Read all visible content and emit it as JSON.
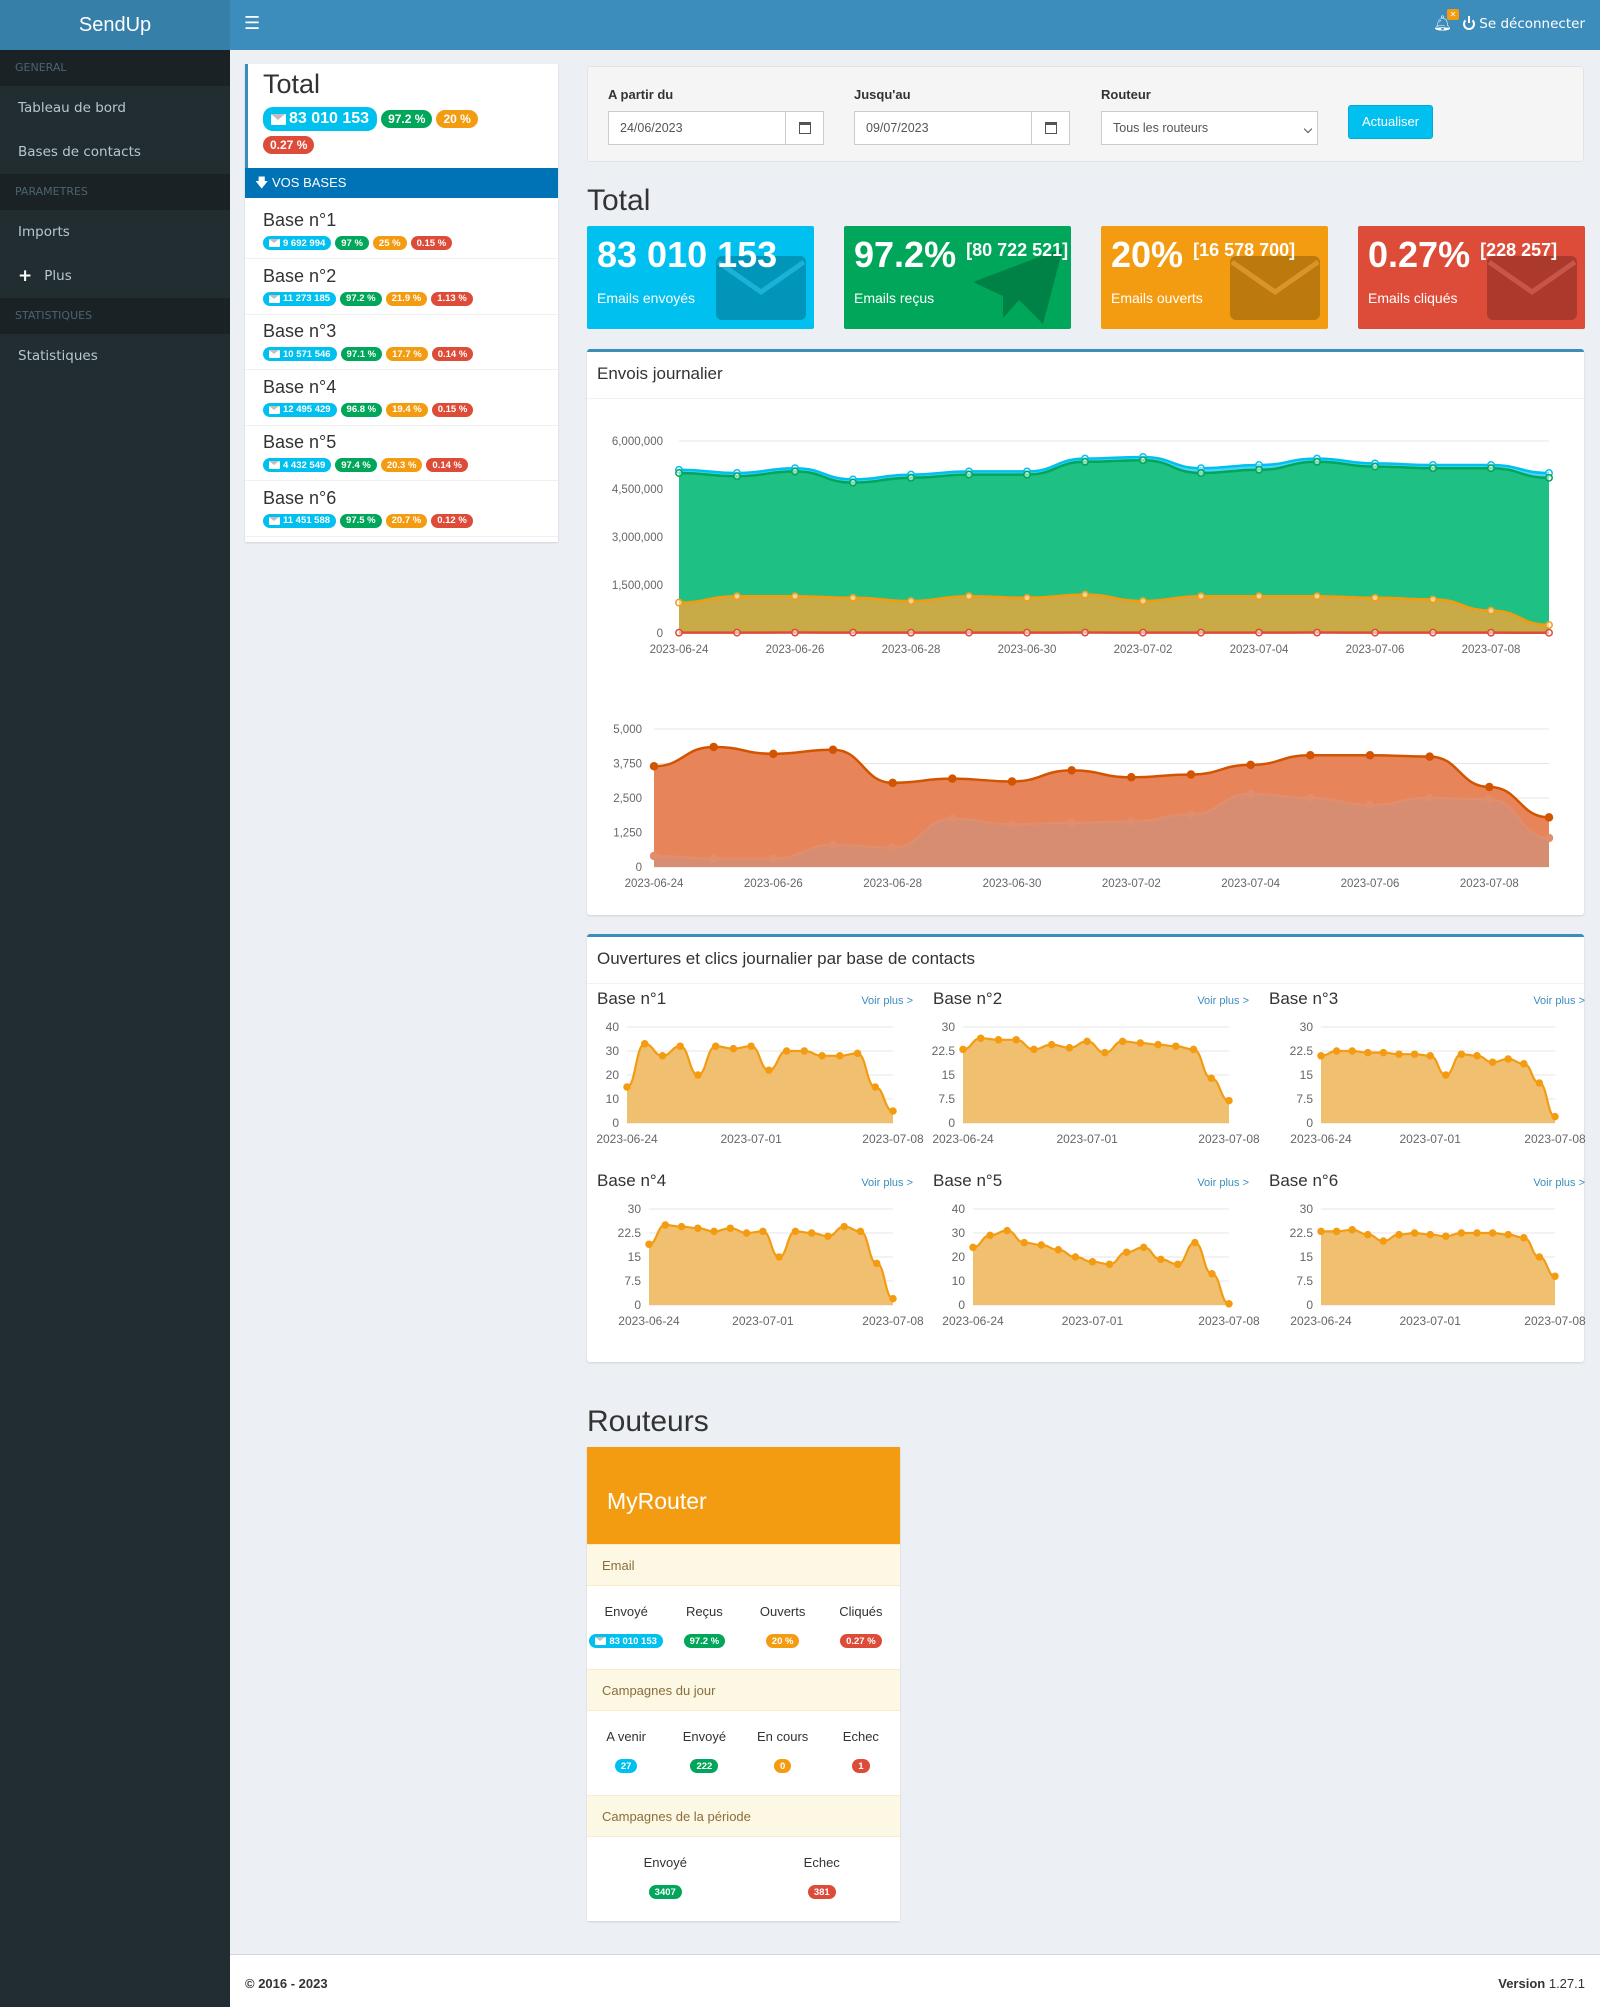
{
  "app": {
    "title": "SendUp"
  },
  "sidebar": {
    "sections": [
      {
        "header": "GENERAL",
        "items": [
          {
            "label": "Tableau de bord"
          },
          {
            "label": "Bases de contacts"
          }
        ]
      },
      {
        "header": "PARAMETRES",
        "items": [
          {
            "label": "Imports"
          },
          {
            "label": "Plus",
            "icon": "plus-icon"
          }
        ]
      },
      {
        "header": "STATISTIQUES",
        "items": [
          {
            "label": "Statistiques"
          }
        ]
      }
    ]
  },
  "topbar": {
    "menu_icon": "hamburger-icon",
    "notification_icon": "bell-icon",
    "notification_badge": "✕",
    "logout_label": "Se déconnecter"
  },
  "left_panel": {
    "title": "Total",
    "sent": "83 010 153",
    "received": "97.2 %",
    "opened": "20 %",
    "clicked": "0.27 %",
    "section_label": "VOS BASES",
    "bases": [
      {
        "name": "Base n°1",
        "sent": "9 692 994",
        "received": "97 %",
        "opened": "25 %",
        "clicked": "0.15 %"
      },
      {
        "name": "Base n°2",
        "sent": "11 273 185",
        "received": "97.2 %",
        "opened": "21.9 %",
        "clicked": "1.13 %"
      },
      {
        "name": "Base n°3",
        "sent": "10 571 546",
        "received": "97.1 %",
        "opened": "17.7 %",
        "clicked": "0.14 %"
      },
      {
        "name": "Base n°4",
        "sent": "12 495 429",
        "received": "96.8 %",
        "opened": "19.4 %",
        "clicked": "0.15 %"
      },
      {
        "name": "Base n°5",
        "sent": "4 432 549",
        "received": "97.4 %",
        "opened": "20.3 %",
        "clicked": "0.14 %"
      },
      {
        "name": "Base n°6",
        "sent": "11 451 588",
        "received": "97.5 %",
        "opened": "20.7 %",
        "clicked": "0.12 %"
      }
    ]
  },
  "filters": {
    "from_label": "A partir du",
    "from_value": "24/06/2023",
    "to_label": "Jusqu'au",
    "to_value": "09/07/2023",
    "router_label": "Routeur",
    "router_value": "Tous les routeurs",
    "refresh_label": "Actualiser"
  },
  "total_section": {
    "title": "Total",
    "boxes": [
      {
        "value": "83 010 153",
        "sub": "",
        "label": "Emails envoyés",
        "color": "#00c0ef",
        "icon": "envelope-icon"
      },
      {
        "value": "97.2%",
        "sub": "[80 722 521]",
        "label": "Emails reçus",
        "color": "#00a65a",
        "icon": "paper-plane-icon"
      },
      {
        "value": "20%",
        "sub": "[16 578 700]",
        "label": "Emails ouverts",
        "color": "#f39c12",
        "icon": "envelope-open-icon"
      },
      {
        "value": "0.27%",
        "sub": "[228 257]",
        "label": "Emails cliqués",
        "color": "#dd4b39",
        "icon": "envelope-icon"
      }
    ]
  },
  "daily_panel": {
    "title": "Envois journalier"
  },
  "chart_data": [
    {
      "type": "area",
      "x": [
        "2023-06-24",
        "2023-06-25",
        "2023-06-26",
        "2023-06-27",
        "2023-06-28",
        "2023-06-29",
        "2023-06-30",
        "2023-07-01",
        "2023-07-02",
        "2023-07-03",
        "2023-07-04",
        "2023-07-05",
        "2023-07-06",
        "2023-07-07",
        "2023-07-08",
        "2023-07-09"
      ],
      "x_tick_labels": [
        "2023-06-24",
        "2023-06-26",
        "2023-06-28",
        "2023-06-30",
        "2023-07-02",
        "2023-07-04",
        "2023-07-06",
        "2023-07-08"
      ],
      "ylim": [
        0,
        6000000
      ],
      "y_tick_labels": [
        "0",
        "1,500,000",
        "3,000,000",
        "4,500,000",
        "6,000,000"
      ],
      "series": [
        {
          "values": [
            5100000,
            5000000,
            5150000,
            4800000,
            4950000,
            5050000,
            5050000,
            5450000,
            5500000,
            5150000,
            5250000,
            5450000,
            5300000,
            5250000,
            5250000,
            5000000
          ],
          "color": "#00c0ef"
        },
        {
          "values": [
            5000000,
            4900000,
            5050000,
            4700000,
            4850000,
            4950000,
            4950000,
            5350000,
            5400000,
            5000000,
            5100000,
            5350000,
            5200000,
            5150000,
            5150000,
            4850000
          ],
          "color": "#00a65a"
        },
        {
          "values": [
            950000,
            1150000,
            1150000,
            1100000,
            1000000,
            1150000,
            1100000,
            1200000,
            1000000,
            1150000,
            1150000,
            1150000,
            1100000,
            1050000,
            700000,
            250000
          ],
          "color": "#f39c12"
        },
        {
          "values": [
            10000,
            12000,
            14000,
            13000,
            11000,
            12000,
            12000,
            15000,
            12000,
            12000,
            13000,
            14000,
            12000,
            12000,
            11000,
            8000
          ],
          "color": "#dd4b39"
        }
      ]
    },
    {
      "type": "area",
      "x": [
        "2023-06-24",
        "2023-06-25",
        "2023-06-26",
        "2023-06-27",
        "2023-06-28",
        "2023-06-29",
        "2023-06-30",
        "2023-07-01",
        "2023-07-02",
        "2023-07-03",
        "2023-07-04",
        "2023-07-05",
        "2023-07-06",
        "2023-07-07",
        "2023-07-08",
        "2023-07-09"
      ],
      "x_tick_labels": [
        "2023-06-24",
        "2023-06-26",
        "2023-06-28",
        "2023-06-30",
        "2023-07-02",
        "2023-07-04",
        "2023-07-06",
        "2023-07-08"
      ],
      "ylim": [
        0,
        5000
      ],
      "y_tick_labels": [
        "0",
        "1,250",
        "2,500",
        "3,750",
        "5,000"
      ],
      "series": [
        {
          "values": [
            3650,
            4350,
            4100,
            4250,
            3050,
            3200,
            3100,
            3500,
            3250,
            3350,
            3700,
            4050,
            4050,
            4000,
            2900,
            1800
          ],
          "color": "#d35400"
        },
        {
          "values": [
            400,
            300,
            300,
            800,
            700,
            1750,
            1550,
            1600,
            1650,
            1900,
            2650,
            2500,
            2250,
            2500,
            2450,
            1050
          ],
          "color": "#e08e6d"
        }
      ]
    },
    {
      "type": "area",
      "title": "Base n°1",
      "ylim": [
        0,
        40
      ],
      "y_tick_labels": [
        "0",
        "10",
        "20",
        "30",
        "40"
      ],
      "x_tick_labels": [
        "2023-06-24",
        "2023-07-01",
        "2023-07-08"
      ],
      "values": [
        15,
        33,
        28,
        32,
        20,
        32,
        31,
        32,
        22,
        30,
        30,
        28,
        28,
        29,
        15,
        5
      ]
    },
    {
      "type": "area",
      "title": "Base n°2",
      "ylim": [
        0,
        30
      ],
      "y_tick_labels": [
        "0",
        "7.5",
        "15",
        "22.5",
        "30"
      ],
      "x_tick_labels": [
        "2023-06-24",
        "2023-07-01",
        "2023-07-08"
      ],
      "values": [
        23,
        26.5,
        26,
        26,
        23,
        24.5,
        23.5,
        25.5,
        22,
        25.5,
        25,
        24.5,
        24,
        23,
        14,
        7
      ]
    },
    {
      "type": "area",
      "title": "Base n°3",
      "ylim": [
        0,
        30
      ],
      "y_tick_labels": [
        "0",
        "7.5",
        "15",
        "22.5",
        "30"
      ],
      "x_tick_labels": [
        "2023-06-24",
        "2023-07-01",
        "2023-07-08"
      ],
      "values": [
        21,
        22.5,
        22.5,
        22,
        22,
        21.5,
        21.5,
        21,
        15,
        21.5,
        21,
        19,
        20,
        18.5,
        12.5,
        2
      ]
    },
    {
      "type": "area",
      "title": "Base n°4",
      "ylim": [
        0,
        30
      ],
      "y_tick_labels": [
        "0",
        "7.5",
        "15",
        "22.5",
        "30"
      ],
      "x_tick_labels": [
        "2023-06-24",
        "2023-07-01",
        "2023-07-08"
      ],
      "values": [
        19,
        25,
        24.5,
        24,
        23,
        24,
        22.5,
        23,
        15,
        23,
        22.5,
        21.5,
        24.5,
        23,
        13,
        2
      ]
    },
    {
      "type": "area",
      "title": "Base n°5",
      "ylim": [
        0,
        40
      ],
      "y_tick_labels": [
        "0",
        "10",
        "20",
        "30",
        "40"
      ],
      "x_tick_labels": [
        "2023-06-24",
        "2023-07-01",
        "2023-07-08"
      ],
      "values": [
        24,
        29,
        31,
        26,
        25,
        23,
        20,
        18,
        17,
        22,
        24,
        19,
        17,
        26,
        13,
        0.5
      ]
    },
    {
      "type": "area",
      "title": "Base n°6",
      "ylim": [
        0,
        30
      ],
      "y_tick_labels": [
        "0",
        "7.5",
        "15",
        "22.5",
        "30"
      ],
      "x_tick_labels": [
        "2023-06-24",
        "2023-07-01",
        "2023-07-08"
      ],
      "values": [
        23,
        23,
        23.5,
        22,
        20,
        22,
        22.5,
        22,
        21.5,
        22.5,
        22.5,
        22.5,
        22,
        21,
        15,
        9
      ]
    }
  ],
  "bases_panel": {
    "title": "Ouvertures et clics journalier par base de contacts",
    "more_label": "Voir plus >"
  },
  "routers": {
    "title": "Routeurs",
    "router_name": "MyRouter",
    "email_section": "Email",
    "email_cols": [
      "Envoyé",
      "Reçus",
      "Ouverts",
      "Cliqués"
    ],
    "email_values": [
      "83 010 153",
      "97.2 %",
      "20 %",
      "0.27 %"
    ],
    "day_section": "Campagnes du jour",
    "day_cols": [
      "A venir",
      "Envoyé",
      "En cours",
      "Echec"
    ],
    "day_values": [
      "27",
      "222",
      "0",
      "1"
    ],
    "period_section": "Campagnes de la période",
    "period_cols": [
      "Envoyé",
      "Echec"
    ],
    "period_values": [
      "3407",
      "381"
    ]
  },
  "footer": {
    "copyright": "© 2016 - 2023",
    "version_label": "Version",
    "version_value": "1.27.1"
  }
}
